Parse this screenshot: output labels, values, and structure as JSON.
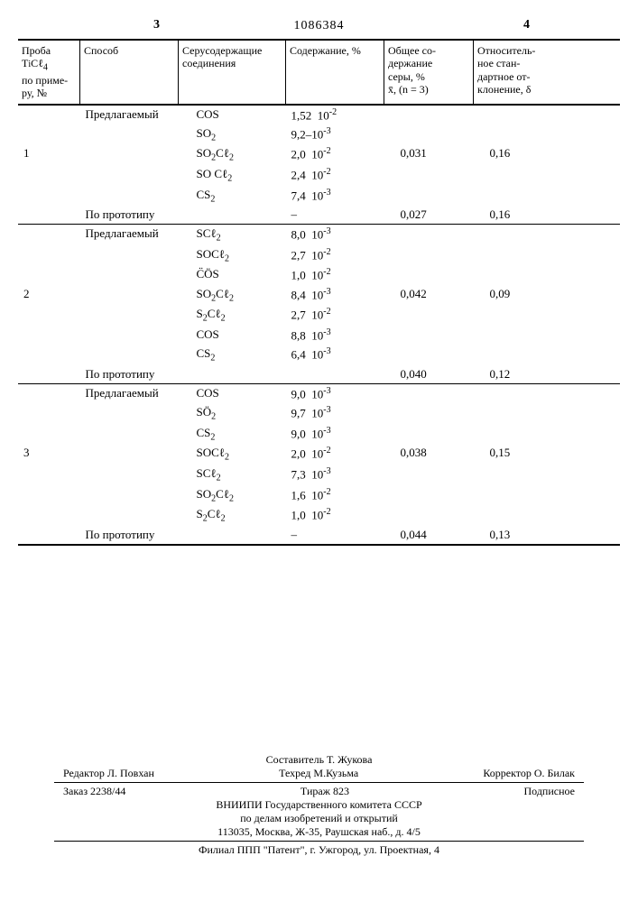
{
  "page_left": "3",
  "page_right": "4",
  "doc_number": "1086384",
  "headers": {
    "col1": "Проба TiCℓ₄ по приме­ру, №",
    "col2": "Способ",
    "col3": "Серусодержащие соединения",
    "col4": "Содержание, %",
    "col5": "Общее со­держание серы, % x̄, (n = 3)",
    "col6": "Относитель­ное стан­дартное от­клонение, δ"
  },
  "groups": [
    {
      "sample": "1",
      "blocks": [
        {
          "method": "Предлагаемый",
          "rows": [
            {
              "compound": "COS",
              "content_m": "1,52",
              "content_e": "10⁻²"
            },
            {
              "compound": "SO₂",
              "content_m": "9,2",
              "content_dash": true,
              "content_e": "10⁻³"
            },
            {
              "compound": "SO₂Cℓ₂",
              "content_m": "2,0",
              "content_e": "10⁻²"
            },
            {
              "compound": "SO Cℓ₂",
              "content_m": "2,4",
              "content_e": "10⁻²"
            },
            {
              "compound": "CS₂",
              "content_m": "7,4",
              "content_e": "10⁻³"
            }
          ],
          "total": "0,031",
          "stdev": "0,16"
        },
        {
          "method": "По прототипу",
          "rows": [
            {
              "compound": "",
              "content_m": "–",
              "content_e": ""
            }
          ],
          "total": "0,027",
          "stdev": "0,16"
        }
      ]
    },
    {
      "sample": "2",
      "blocks": [
        {
          "method": "Предлагаемый",
          "rows": [
            {
              "compound": "SCℓ₂",
              "content_m": "8,0",
              "content_e": "10⁻³"
            },
            {
              "compound": "SOCℓ₂",
              "content_m": "2,7",
              "content_e": "10⁻²"
            },
            {
              "compound": "C̈ÖS",
              "content_m": "1,0",
              "content_e": "10⁻²"
            },
            {
              "compound": "SO₂Cℓ₂",
              "content_m": "8,4",
              "content_e": "10⁻³"
            },
            {
              "compound": "S₂Cℓ₂",
              "content_m": "2,7",
              "content_e": "10⁻²"
            },
            {
              "compound": "COS",
              "content_m": "8,8",
              "content_e": "10⁻³"
            },
            {
              "compound": "CS₂",
              "content_m": "6,4",
              "content_e": "10⁻³"
            }
          ],
          "total": "0,042",
          "stdev": "0,09"
        },
        {
          "method": "По прототипу",
          "rows": [
            {
              "compound": "",
              "content_m": "",
              "content_e": ""
            }
          ],
          "total": "0,040",
          "stdev": "0,12"
        }
      ]
    },
    {
      "sample": "3",
      "blocks": [
        {
          "method": "Предлагаемый",
          "rows": [
            {
              "compound": "COS",
              "content_m": "9,0",
              "content_e": "10⁻³"
            },
            {
              "compound": "SÖ₂",
              "content_m": "9,7",
              "content_e": "10⁻³"
            },
            {
              "compound": "CS₂",
              "content_m": "9,0",
              "content_e": "10⁻³"
            },
            {
              "compound": "SOCℓ₂",
              "content_m": "2,0",
              "content_e": "10⁻²"
            },
            {
              "compound": "SCℓ₂",
              "content_m": "7,3",
              "content_e": "10⁻³"
            },
            {
              "compound": "SO₂Cℓ₂",
              "content_m": "1,6",
              "content_e": "10⁻²"
            },
            {
              "compound": "S₂Cℓ₂",
              "content_m": "1,0",
              "content_e": "10⁻²"
            }
          ],
          "total": "0,038",
          "stdev": "0,15"
        },
        {
          "method": "По прототипу",
          "rows": [
            {
              "compound": "",
              "content_m": "–",
              "content_e": ""
            }
          ],
          "total": "0,044",
          "stdev": "0,13"
        }
      ]
    }
  ],
  "footer": {
    "compiler": "Составитель Т. Жукова",
    "editor": "Редактор Л. Повхан",
    "tech": "Техред М.Кузьма",
    "corrector": "Корректор О. Билак",
    "order": "Заказ 2238/44",
    "tirazh": "Тираж 823",
    "subscription": "Подписное",
    "org1": "ВНИИПИ Государственного комитета СССР",
    "org2": "по делам изобретений и открытий",
    "address1": "113035, Москва, Ж-35, Раушская наб., д. 4/5",
    "branch": "Филиал ППП \"Патент\", г. Ужгород, ул. Проектная, 4"
  }
}
